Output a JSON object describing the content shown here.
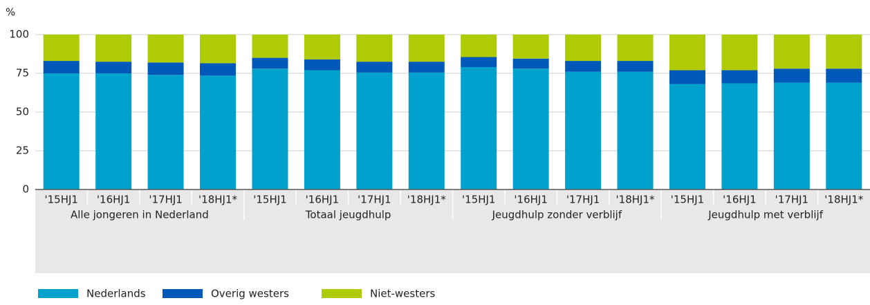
{
  "chart_data": {
    "type": "stacked_bar",
    "y_axis_label": "%",
    "groups": [
      {
        "name": "Alle jongeren in Nederland",
        "categories": [
          "'15HJ1",
          "'16HJ1",
          "'17HJ1",
          "'18HJ1*"
        ]
      },
      {
        "name": "Totaal jeugdhulp",
        "categories": [
          "'15HJ1",
          "'16HJ1",
          "'17HJ1",
          "'18HJ1*"
        ]
      },
      {
        "name": "Jeugdhulp zonder verblijf",
        "categories": [
          "'15HJ1",
          "'16HJ1",
          "'17HJ1",
          "'18HJ1*"
        ]
      },
      {
        "name": "Jeugdhulp met verblijf",
        "categories": [
          "'15HJ1",
          "'16HJ1",
          "'17HJ1",
          "'18HJ1*"
        ]
      }
    ],
    "series": [
      {
        "name": "Nederlands",
        "color": "#00a1cd",
        "values": [
          75,
          75,
          74,
          73.5,
          78,
          77,
          75.5,
          75.5,
          79,
          78,
          76,
          76,
          68,
          68.5,
          69,
          69
        ]
      },
      {
        "name": "Overig westers",
        "color": "#0058b8",
        "values": [
          8,
          7.5,
          8,
          8,
          7,
          7,
          7,
          7,
          6.5,
          6.5,
          7,
          7,
          9,
          8.5,
          9,
          9
        ]
      },
      {
        "name": "Niet-westers",
        "color": "#afcb05",
        "values": [
          17,
          17.5,
          18,
          18.5,
          15,
          16,
          17.5,
          17.5,
          14.5,
          15.5,
          17,
          17,
          23,
          23,
          22,
          22
        ]
      }
    ],
    "ylim": [
      0,
      100
    ],
    "yticks": [
      0,
      25,
      50,
      75,
      100
    ],
    "grid": true
  }
}
